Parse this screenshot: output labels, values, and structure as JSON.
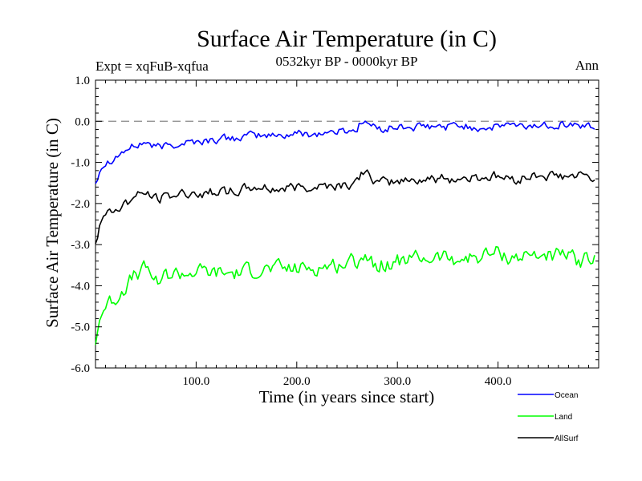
{
  "chart_data": {
    "type": "line",
    "title": "Surface Air Temperature (in C)",
    "subtitle_left": "Expt = xqFuB-xqfua",
    "subtitle_center": "0532kyr BP - 0000kyr BP",
    "subtitle_right": "Ann",
    "xlabel": "Time (in years since start)",
    "ylabel": "Surface Air Temperature (in C)",
    "xlim": [
      0,
      500
    ],
    "ylim": [
      -6.0,
      1.0
    ],
    "xticks": [
      100,
      200,
      300,
      400
    ],
    "xtick_labels": [
      "100.0",
      "200.0",
      "300.0",
      "400.0"
    ],
    "yticks": [
      1.0,
      0.0,
      -1.0,
      -2.0,
      -3.0,
      -4.0,
      -5.0,
      -6.0
    ],
    "ytick_labels": [
      "1.0",
      "0.0",
      "-1.0",
      "-2.0",
      "-3.0",
      "-4.0",
      "-5.0",
      "-6.0"
    ],
    "reference_line": 0.0,
    "x": [
      0,
      5,
      10,
      20,
      30,
      40,
      50,
      60,
      70,
      80,
      90,
      100,
      120,
      140,
      160,
      180,
      200,
      220,
      240,
      260,
      265,
      280,
      300,
      320,
      340,
      360,
      380,
      400,
      410,
      420,
      440,
      460,
      480,
      495
    ],
    "series": [
      {
        "name": "Ocean",
        "color": "#0000ff",
        "values": [
          -1.5,
          -1.1,
          -1.0,
          -0.85,
          -0.7,
          -0.6,
          -0.5,
          -0.65,
          -0.6,
          -0.55,
          -0.5,
          -0.5,
          -0.45,
          -0.4,
          -0.35,
          -0.35,
          -0.3,
          -0.3,
          -0.25,
          -0.2,
          0.05,
          -0.2,
          -0.15,
          -0.15,
          -0.15,
          -0.1,
          -0.15,
          -0.15,
          -0.05,
          -0.15,
          -0.1,
          -0.05,
          -0.1,
          -0.15
        ]
      },
      {
        "name": "Land",
        "color": "#00ff00",
        "values": [
          -5.4,
          -4.7,
          -4.5,
          -4.3,
          -4.0,
          -3.75,
          -3.6,
          -3.85,
          -3.75,
          -3.7,
          -3.7,
          -3.65,
          -3.7,
          -3.7,
          -3.6,
          -3.6,
          -3.6,
          -3.55,
          -3.5,
          -3.4,
          -3.2,
          -3.5,
          -3.4,
          -3.35,
          -3.3,
          -3.35,
          -3.3,
          -3.2,
          -3.3,
          -3.3,
          -3.25,
          -3.25,
          -3.4,
          -3.35
        ]
      },
      {
        "name": "AllSurf",
        "color": "#000000",
        "values": [
          -2.95,
          -2.4,
          -2.3,
          -2.15,
          -2.0,
          -1.85,
          -1.75,
          -1.9,
          -1.85,
          -1.8,
          -1.75,
          -1.75,
          -1.7,
          -1.7,
          -1.6,
          -1.65,
          -1.6,
          -1.55,
          -1.55,
          -1.5,
          -1.2,
          -1.5,
          -1.45,
          -1.4,
          -1.4,
          -1.4,
          -1.35,
          -1.35,
          -1.4,
          -1.4,
          -1.3,
          -1.35,
          -1.35,
          -1.4
        ]
      }
    ],
    "legend": [
      "Ocean",
      "Land",
      "AllSurf"
    ],
    "legend_position": "bottom-right",
    "grid": false
  }
}
